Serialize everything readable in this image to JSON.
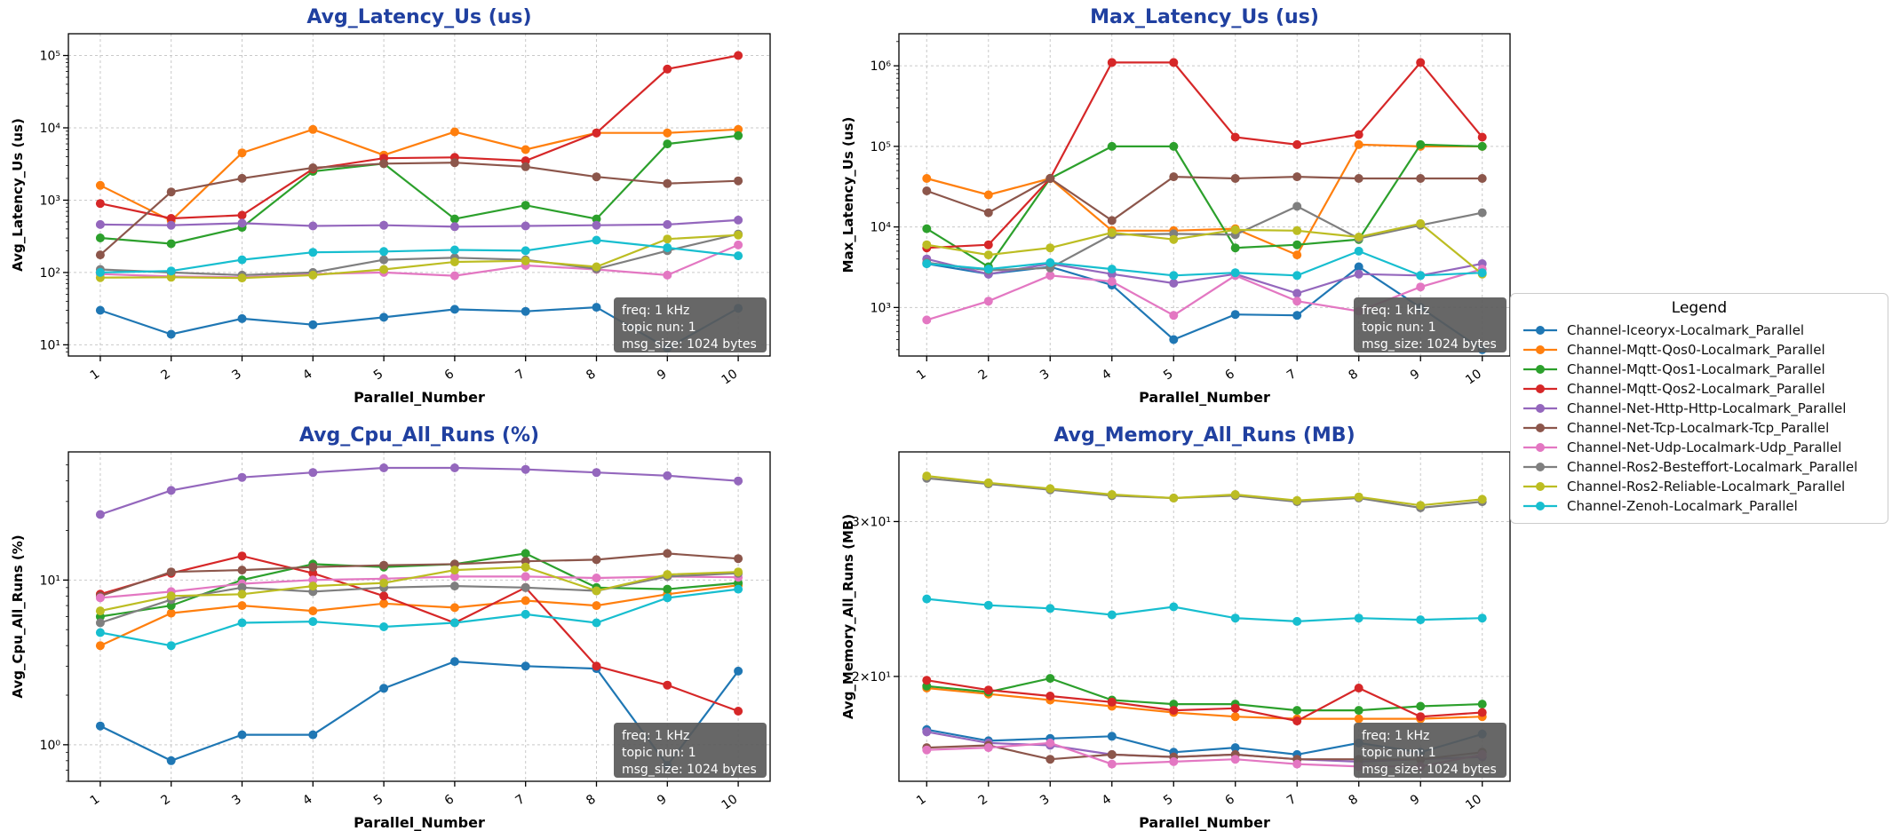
{
  "figure": {
    "background": "#ffffff"
  },
  "style": {
    "title_color": "#2040a0",
    "grid_color": "#c9c9c9",
    "axis_color": "#000000",
    "annotation_bg": "#5a5a5a",
    "annotation_fg": "#ffffff"
  },
  "annotation": {
    "lines": [
      "freq: 1 kHz",
      "topic nun: 1",
      "msg_size: 1024 bytes"
    ]
  },
  "legend": {
    "title": "Legend",
    "entries": [
      {
        "label": "Channel-Iceoryx-Localmark_Parallel",
        "color": "#1f77b4"
      },
      {
        "label": "Channel-Mqtt-Qos0-Localmark_Parallel",
        "color": "#ff7f0e"
      },
      {
        "label": "Channel-Mqtt-Qos1-Localmark_Parallel",
        "color": "#2ca02c"
      },
      {
        "label": "Channel-Mqtt-Qos2-Localmark_Parallel",
        "color": "#d62728"
      },
      {
        "label": "Channel-Net-Http-Http-Localmark_Parallel",
        "color": "#9467bd"
      },
      {
        "label": "Channel-Net-Tcp-Localmark-Tcp_Parallel",
        "color": "#8c564b"
      },
      {
        "label": "Channel-Net-Udp-Localmark-Udp_Parallel",
        "color": "#e377c2"
      },
      {
        "label": "Channel-Ros2-Besteffort-Localmark_Parallel",
        "color": "#7f7f7f"
      },
      {
        "label": "Channel-Ros2-Reliable-Localmark_Parallel",
        "color": "#bcbd22"
      },
      {
        "label": "Channel-Zenoh-Localmark_Parallel",
        "color": "#17becf"
      }
    ]
  },
  "chart_data": [
    {
      "id": "avg_latency_us",
      "type": "line",
      "title": "Avg_Latency_Us  (us)",
      "xlabel": "Parallel_Number",
      "ylabel": "Avg_Latency_Us (us)",
      "yscale": "log",
      "grid": true,
      "x": [
        1,
        2,
        3,
        4,
        5,
        6,
        7,
        8,
        9,
        10
      ],
      "ylim": [
        7,
        200000
      ],
      "yticks": [
        {
          "v": 10,
          "label": "10¹"
        },
        {
          "v": 100,
          "label": "10²"
        },
        {
          "v": 1000,
          "label": "10³"
        },
        {
          "v": 10000,
          "label": "10⁴"
        },
        {
          "v": 100000,
          "label": "10⁵"
        }
      ],
      "series": [
        {
          "name": "Channel-Iceoryx-Localmark_Parallel",
          "color": "#1f77b4",
          "values": [
            30,
            14,
            23,
            19,
            24,
            31,
            29,
            33,
            9,
            32
          ]
        },
        {
          "name": "Channel-Mqtt-Qos0-Localmark_Parallel",
          "color": "#ff7f0e",
          "values": [
            1600,
            520,
            4500,
            9500,
            4200,
            8800,
            5000,
            8500,
            8500,
            9500
          ]
        },
        {
          "name": "Channel-Mqtt-Qos1-Localmark_Parallel",
          "color": "#2ca02c",
          "values": [
            300,
            250,
            420,
            2500,
            3200,
            550,
            850,
            550,
            6000,
            7800
          ]
        },
        {
          "name": "Channel-Mqtt-Qos2-Localmark_Parallel",
          "color": "#d62728",
          "values": [
            900,
            560,
            620,
            2700,
            3800,
            3900,
            3500,
            8500,
            65000,
            100000
          ]
        },
        {
          "name": "Channel-Net-Http-Http-Localmark_Parallel",
          "color": "#9467bd",
          "values": [
            460,
            450,
            480,
            440,
            450,
            430,
            440,
            450,
            460,
            530
          ]
        },
        {
          "name": "Channel-Net-Tcp-Localmark-Tcp_Parallel",
          "color": "#8c564b",
          "values": [
            175,
            1300,
            2000,
            2800,
            3200,
            3300,
            2900,
            2100,
            1700,
            1850
          ]
        },
        {
          "name": "Channel-Net-Udp-Localmark-Udp_Parallel",
          "color": "#e377c2",
          "values": [
            95,
            88,
            86,
            95,
            100,
            90,
            125,
            110,
            92,
            240
          ]
        },
        {
          "name": "Channel-Ros2-Besteffort-Localmark_Parallel",
          "color": "#7f7f7f",
          "values": [
            110,
            100,
            92,
            100,
            150,
            160,
            150,
            112,
            200,
            340
          ]
        },
        {
          "name": "Channel-Ros2-Reliable-Localmark_Parallel",
          "color": "#bcbd22",
          "values": [
            85,
            86,
            84,
            92,
            110,
            140,
            145,
            120,
            290,
            330
          ]
        },
        {
          "name": "Channel-Zenoh-Localmark_Parallel",
          "color": "#17becf",
          "values": [
            100,
            105,
            150,
            190,
            195,
            205,
            200,
            280,
            220,
            170
          ]
        }
      ]
    },
    {
      "id": "max_latency_us",
      "type": "line",
      "title": "Max_Latency_Us  (us)",
      "xlabel": "Parallel_Number",
      "ylabel": "Max_Latency_Us (us)",
      "yscale": "log",
      "grid": true,
      "x": [
        1,
        2,
        3,
        4,
        5,
        6,
        7,
        8,
        9,
        10
      ],
      "ylim": [
        250,
        2500000
      ],
      "yticks": [
        {
          "v": 1000,
          "label": "10³"
        },
        {
          "v": 10000,
          "label": "10⁴"
        },
        {
          "v": 100000,
          "label": "10⁵"
        },
        {
          "v": 1000000,
          "label": "10⁶"
        }
      ],
      "series": [
        {
          "name": "Channel-Iceoryx-Localmark_Parallel",
          "color": "#1f77b4",
          "values": [
            3500,
            2600,
            3200,
            1900,
            400,
            820,
            800,
            3200,
            1000,
            300
          ]
        },
        {
          "name": "Channel-Mqtt-Qos0-Localmark_Parallel",
          "color": "#ff7f0e",
          "values": [
            40000,
            25000,
            40000,
            9000,
            9000,
            9500,
            4500,
            105000,
            100000,
            100000
          ]
        },
        {
          "name": "Channel-Mqtt-Qos1-Localmark_Parallel",
          "color": "#2ca02c",
          "values": [
            9500,
            3200,
            40000,
            100000,
            100000,
            5500,
            6000,
            7000,
            105000,
            100000
          ]
        },
        {
          "name": "Channel-Mqtt-Qos2-Localmark_Parallel",
          "color": "#d62728",
          "values": [
            5500,
            6000,
            40000,
            1100000,
            1100000,
            130000,
            105000,
            140000,
            1100000,
            130000
          ]
        },
        {
          "name": "Channel-Net-Http-Http-Localmark_Parallel",
          "color": "#9467bd",
          "values": [
            4000,
            2600,
            3500,
            2600,
            2000,
            2600,
            1500,
            2600,
            2500,
            3500
          ]
        },
        {
          "name": "Channel-Net-Tcp-Localmark-Tcp_Parallel",
          "color": "#8c564b",
          "values": [
            28000,
            15000,
            40000,
            12000,
            42000,
            40000,
            42000,
            40000,
            40000,
            40000
          ]
        },
        {
          "name": "Channel-Net-Udp-Localmark-Udp_Parallel",
          "color": "#e377c2",
          "values": [
            700,
            1200,
            2500,
            2100,
            800,
            2500,
            1200,
            900,
            1800,
            3000
          ]
        },
        {
          "name": "Channel-Ros2-Besteffort-Localmark_Parallel",
          "color": "#7f7f7f",
          "values": [
            3600,
            2900,
            3100,
            8000,
            8200,
            8000,
            18000,
            7200,
            10500,
            15000
          ]
        },
        {
          "name": "Channel-Ros2-Reliable-Localmark_Parallel",
          "color": "#bcbd22",
          "values": [
            6000,
            4500,
            5500,
            8500,
            7000,
            9200,
            9000,
            7500,
            11000,
            2600
          ]
        },
        {
          "name": "Channel-Zenoh-Localmark_Parallel",
          "color": "#17becf",
          "values": [
            3500,
            3000,
            3600,
            3000,
            2500,
            2700,
            2500,
            5000,
            2500,
            2700
          ]
        }
      ]
    },
    {
      "id": "avg_cpu_all_runs",
      "type": "line",
      "title": "Avg_Cpu_All_Runs  (%)",
      "xlabel": "Parallel_Number",
      "ylabel": "Avg_Cpu_All_Runs (%)",
      "yscale": "log",
      "grid": true,
      "x": [
        1,
        2,
        3,
        4,
        5,
        6,
        7,
        8,
        9,
        10
      ],
      "ylim": [
        0.6,
        60
      ],
      "yticks": [
        {
          "v": 1,
          "label": "10⁰"
        },
        {
          "v": 10,
          "label": "10¹"
        }
      ],
      "series": [
        {
          "name": "Channel-Iceoryx-Localmark_Parallel",
          "color": "#1f77b4",
          "values": [
            1.3,
            0.8,
            1.15,
            1.15,
            2.2,
            3.2,
            3.0,
            2.9,
            0.75,
            2.8
          ]
        },
        {
          "name": "Channel-Mqtt-Qos0-Localmark_Parallel",
          "color": "#ff7f0e",
          "values": [
            4.0,
            6.3,
            7.0,
            6.5,
            7.2,
            6.8,
            7.5,
            7.0,
            8.2,
            9.3
          ]
        },
        {
          "name": "Channel-Mqtt-Qos1-Localmark_Parallel",
          "color": "#2ca02c",
          "values": [
            6.0,
            7.0,
            10.0,
            12.5,
            12.0,
            12.5,
            14.5,
            9.0,
            8.8,
            9.6
          ]
        },
        {
          "name": "Channel-Mqtt-Qos2-Localmark_Parallel",
          "color": "#d62728",
          "values": [
            8.2,
            11.0,
            14.0,
            11.0,
            8.0,
            5.5,
            9.0,
            3.0,
            2.3,
            1.6
          ]
        },
        {
          "name": "Channel-Net-Http-Http-Localmark_Parallel",
          "color": "#9467bd",
          "values": [
            25,
            35,
            42,
            45,
            48,
            48,
            47,
            45,
            43,
            40
          ]
        },
        {
          "name": "Channel-Net-Tcp-Localmark-Tcp_Parallel",
          "color": "#8c564b",
          "values": [
            8.0,
            11.2,
            11.5,
            12.0,
            12.3,
            12.5,
            13.0,
            13.3,
            14.5,
            13.5
          ]
        },
        {
          "name": "Channel-Net-Udp-Localmark-Udp_Parallel",
          "color": "#e377c2",
          "values": [
            7.8,
            8.5,
            9.5,
            10.0,
            10.2,
            10.5,
            10.5,
            10.3,
            10.5,
            10.4
          ]
        },
        {
          "name": "Channel-Ros2-Besteffort-Localmark_Parallel",
          "color": "#7f7f7f",
          "values": [
            5.5,
            7.6,
            9.0,
            8.5,
            9.0,
            9.2,
            9.0,
            8.6,
            10.5,
            11.0
          ]
        },
        {
          "name": "Channel-Ros2-Reliable-Localmark_Parallel",
          "color": "#bcbd22",
          "values": [
            6.5,
            8.0,
            8.2,
            9.2,
            9.6,
            11.5,
            12.0,
            8.6,
            10.8,
            11.2
          ]
        },
        {
          "name": "Channel-Zenoh-Localmark_Parallel",
          "color": "#17becf",
          "values": [
            4.8,
            4.0,
            5.5,
            5.6,
            5.2,
            5.5,
            6.2,
            5.5,
            7.8,
            8.8
          ]
        }
      ]
    },
    {
      "id": "avg_memory_all_runs",
      "type": "line",
      "title": "Avg_Memory_All_Runs  (MB)",
      "xlabel": "Parallel_Number",
      "ylabel": "Avg_Memory_All_Runs (MB)",
      "yscale": "log",
      "grid": true,
      "x": [
        1,
        2,
        3,
        4,
        5,
        6,
        7,
        8,
        9,
        10
      ],
      "ylim": [
        15.2,
        36
      ],
      "yticks": [
        {
          "v": 20,
          "label": "2×10¹"
        },
        {
          "v": 30,
          "label": "3×10¹"
        }
      ],
      "series": [
        {
          "name": "Channel-Iceoryx-Localmark_Parallel",
          "color": "#1f77b4",
          "values": [
            17.4,
            16.9,
            17.0,
            17.1,
            16.4,
            16.6,
            16.3,
            16.8,
            16.4,
            17.2
          ]
        },
        {
          "name": "Channel-Mqtt-Qos0-Localmark_Parallel",
          "color": "#ff7f0e",
          "values": [
            19.4,
            19.1,
            18.8,
            18.5,
            18.2,
            18.0,
            17.9,
            17.9,
            17.9,
            18.0
          ]
        },
        {
          "name": "Channel-Mqtt-Qos1-Localmark_Parallel",
          "color": "#2ca02c",
          "values": [
            19.5,
            19.2,
            19.9,
            18.8,
            18.6,
            18.6,
            18.3,
            18.3,
            18.5,
            18.6
          ]
        },
        {
          "name": "Channel-Mqtt-Qos2-Localmark_Parallel",
          "color": "#d62728",
          "values": [
            19.8,
            19.3,
            19.0,
            18.7,
            18.3,
            18.4,
            17.8,
            19.4,
            18.0,
            18.2
          ]
        },
        {
          "name": "Channel-Net-Http-Http-Localmark_Parallel",
          "color": "#9467bd",
          "values": [
            17.3,
            16.8,
            16.7,
            16.3,
            16.2,
            16.3,
            16.1,
            16.0,
            16.1,
            16.2
          ]
        },
        {
          "name": "Channel-Net-Tcp-Localmark-Tcp_Parallel",
          "color": "#8c564b",
          "values": [
            16.6,
            16.7,
            16.1,
            16.3,
            16.2,
            16.3,
            16.1,
            16.1,
            16.1,
            16.4
          ]
        },
        {
          "name": "Channel-Net-Udp-Localmark-Udp_Parallel",
          "color": "#e377c2",
          "values": [
            16.5,
            16.6,
            16.8,
            15.9,
            16.0,
            16.1,
            15.9,
            15.8,
            15.8,
            16.3
          ]
        },
        {
          "name": "Channel-Ros2-Besteffort-Localmark_Parallel",
          "color": "#7f7f7f",
          "values": [
            33.6,
            33.1,
            32.6,
            32.1,
            31.9,
            32.1,
            31.6,
            31.9,
            31.1,
            31.6
          ]
        },
        {
          "name": "Channel-Ros2-Reliable-Localmark_Parallel",
          "color": "#bcbd22",
          "values": [
            33.8,
            33.2,
            32.7,
            32.2,
            31.9,
            32.2,
            31.7,
            32.0,
            31.3,
            31.8
          ]
        },
        {
          "name": "Channel-Zenoh-Localmark_Parallel",
          "color": "#17becf",
          "values": [
            24.5,
            24.1,
            23.9,
            23.5,
            24.0,
            23.3,
            23.1,
            23.3,
            23.2,
            23.3
          ]
        }
      ]
    }
  ]
}
